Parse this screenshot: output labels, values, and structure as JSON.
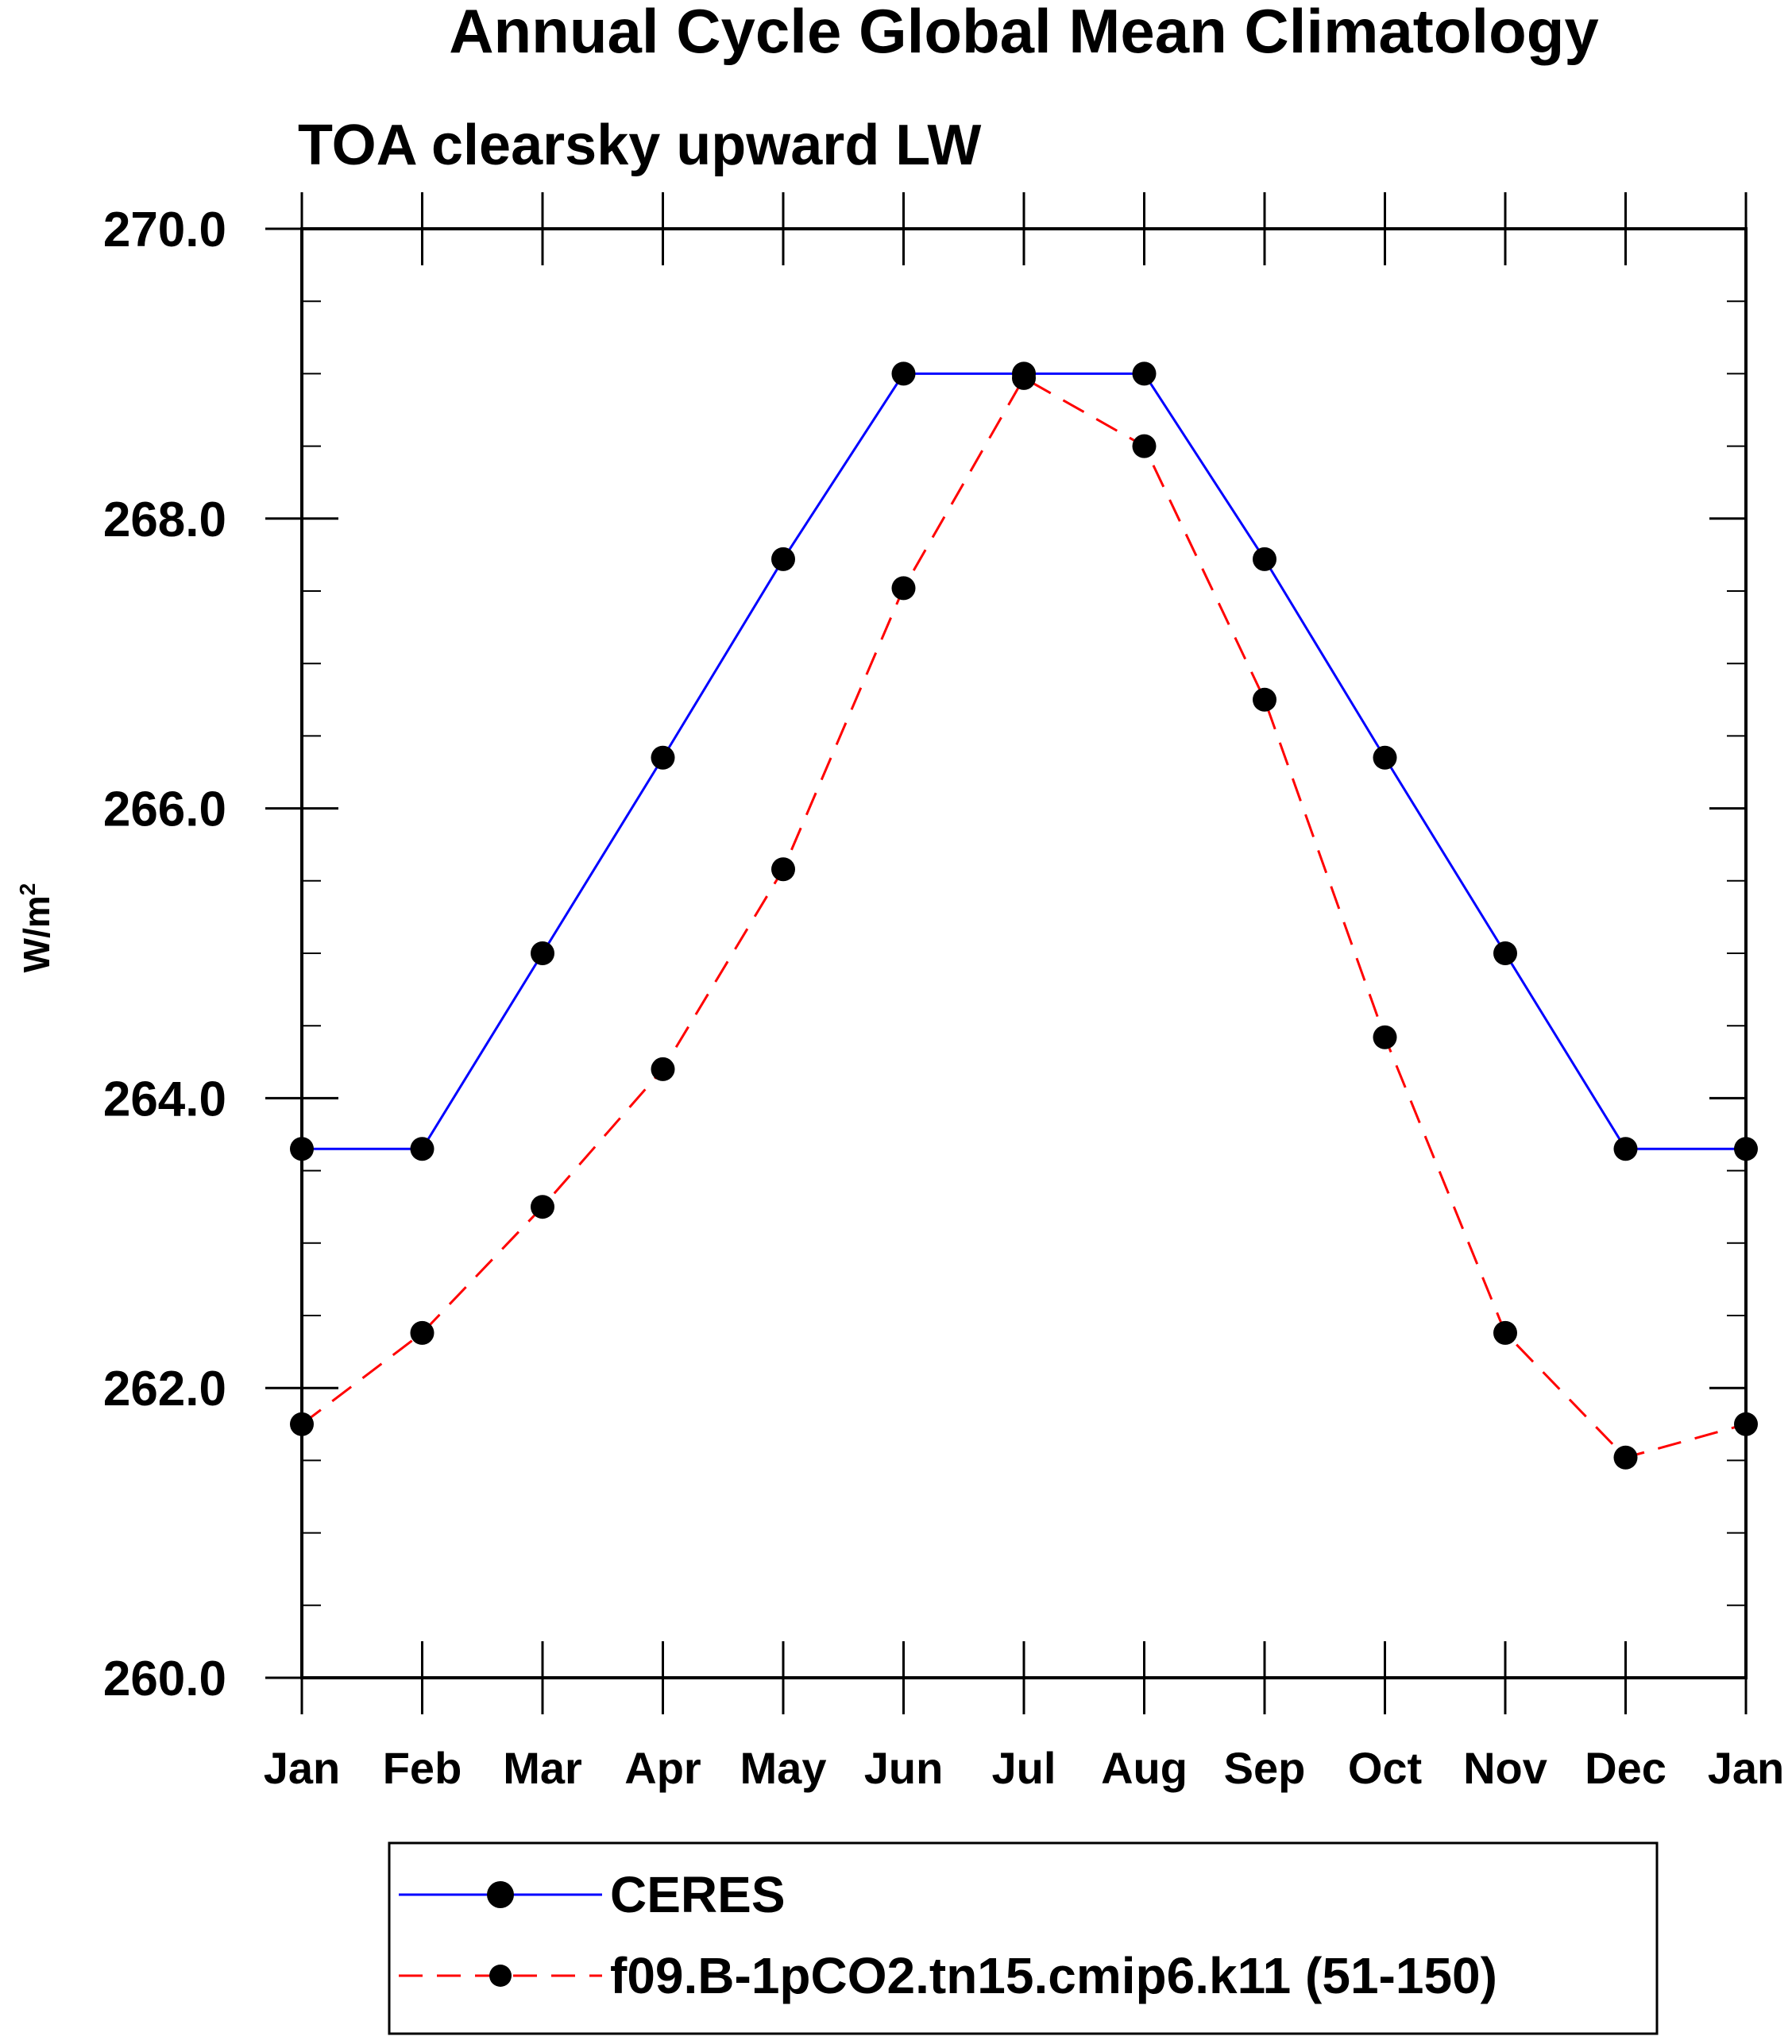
{
  "chart_data": {
    "type": "line",
    "title": "Annual Cycle Global Mean Climatology",
    "subtitle": "TOA clearsky upward LW",
    "ylabel": "W/m",
    "ylabel_superscript": "2",
    "xlabel": "",
    "categories": [
      "Jan",
      "Feb",
      "Mar",
      "Apr",
      "May",
      "Jun",
      "Jul",
      "Aug",
      "Sep",
      "Oct",
      "Nov",
      "Dec",
      "Jan"
    ],
    "ylim": [
      260.0,
      270.0
    ],
    "yticks": [
      "260.0",
      "262.0",
      "264.0",
      "266.0",
      "268.0",
      "270.0"
    ],
    "grid": false,
    "legend_position": "bottom",
    "series": [
      {
        "name": "CERES",
        "color": "#0000ff",
        "line_style": "solid",
        "marker": "filled-circle",
        "values": [
          263.65,
          263.65,
          265.0,
          266.35,
          267.72,
          269.0,
          269.0,
          269.0,
          267.72,
          266.35,
          265.0,
          263.65,
          263.65
        ]
      },
      {
        "name": "f09.B-1pCO2.tn15.cmip6.k11 (51-150)",
        "color": "#ff0000",
        "line_style": "dashed",
        "marker": "filled-circle",
        "values": [
          261.75,
          262.38,
          263.25,
          264.2,
          265.58,
          267.52,
          268.97,
          268.5,
          266.75,
          264.42,
          262.38,
          261.52,
          261.75
        ]
      }
    ]
  }
}
